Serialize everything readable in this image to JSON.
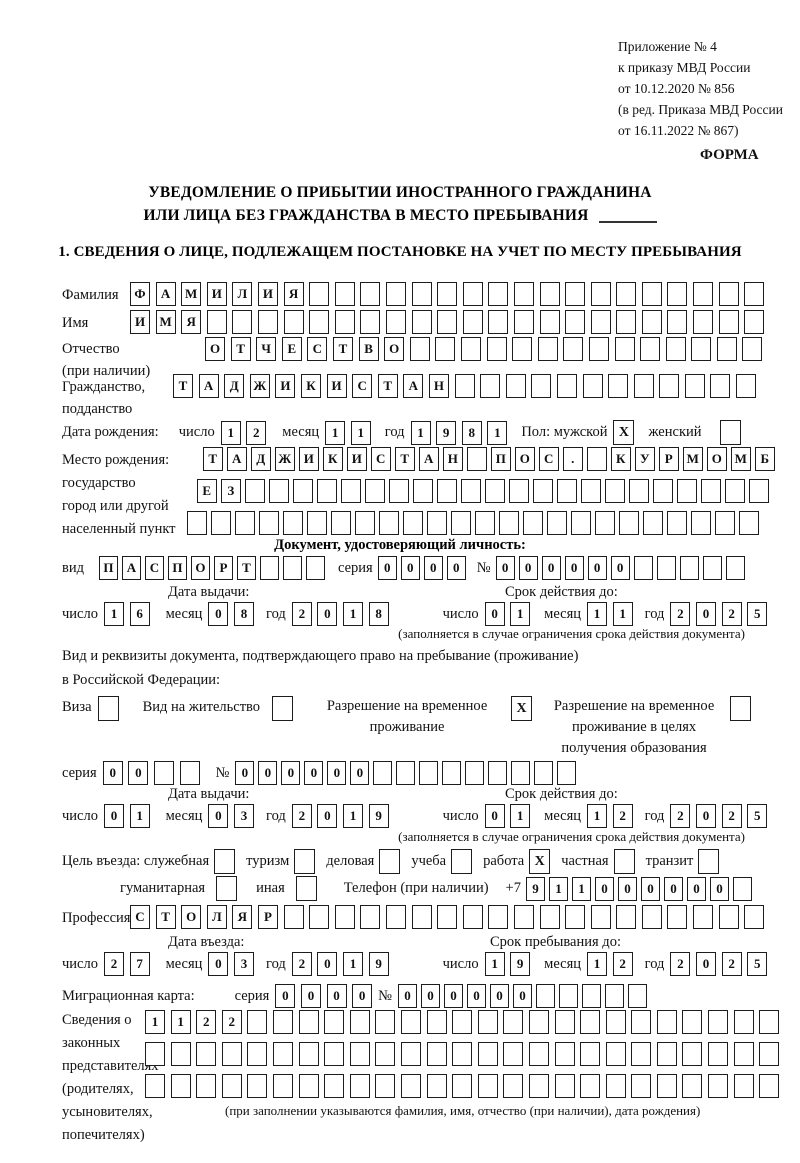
{
  "header": {
    "line1": "Приложение № 4",
    "line2": "к приказу МВД России",
    "line3": "от 10.12.2020 № 856",
    "line4": "(в ред. Приказа МВД России",
    "line5": "от 16.11.2022 № 867)",
    "form_label": "ФОРМА"
  },
  "title": {
    "line1": "УВЕДОМЛЕНИЕ О ПРИБЫТИИ ИНОСТРАННОГО ГРАЖДАНИНА",
    "line2": "ИЛИ ЛИЦА БЕЗ ГРАЖДАНСТВА В МЕСТО ПРЕБЫВАНИЯ"
  },
  "section1": {
    "heading": "1. СВЕДЕНИЯ О ЛИЦЕ, ПОДЛЕЖАЩЕМ ПОСТАНОВКЕ НА УЧЕТ ПО МЕСТУ ПРЕБЫВАНИЯ"
  },
  "labels": {
    "surname": "Фамилия",
    "given_name": "Имя",
    "patronymic": "Отчество",
    "patronymic_note": "(при наличии)",
    "citizenship1": "Гражданство,",
    "citizenship2": "подданство",
    "birth_date": "Дата рождения:",
    "day": "число",
    "month": "месяц",
    "year": "год",
    "sex_male": "Пол: мужской",
    "sex_female": "женский",
    "birth_place": "Место рождения:",
    "state": "государство",
    "city": "город или другой",
    "settlement": "населенный пункт",
    "identity_doc_heading": "Документ, удостоверяющий личность:",
    "doc_kind": "вид",
    "series": "серия",
    "number_sign": "№",
    "issue_date": "Дата выдачи:",
    "valid_until": "Срок действия до:",
    "valid_note": "(заполняется в случае ограничения срока действия документа)",
    "residence_doc_line1": "Вид и реквизиты документа, подтверждающего право на пребывание (проживание)",
    "residence_doc_line2": "в Российской Федерации:",
    "visa": "Виза",
    "residence_permit": "Вид на жительство",
    "temp_residence": "Разрешение на временное проживание",
    "temp_residence_edu": "Разрешение на временное проживание в целях получения образования",
    "entry_purpose": "Цель въезда: служебная",
    "tourism": "туризм",
    "business": "деловая",
    "study": "учеба",
    "work": "работа",
    "private": "частная",
    "transit": "транзит",
    "humanitarian": "гуманитарная",
    "other": "иная",
    "phone": "Телефон (при наличии)",
    "phone_prefix": "+7",
    "profession": "Профессия",
    "entry_date": "Дата въезда:",
    "stay_until": "Срок пребывания до:",
    "migration_card": "Миграционная карта:",
    "representatives1": "Сведения о",
    "representatives2": "законных",
    "representatives3": "представителях",
    "representatives4": "(родителях,",
    "representatives5": "усыновителях,",
    "representatives6": "попечителях)",
    "representatives_note": "(при заполнении указываются фамилия, имя, отчество (при наличии), дата рождения)"
  },
  "rows": {
    "surname": {
      "v": "ФАМИЛИЯ",
      "n": 25
    },
    "given_name": {
      "v": "ИМЯ",
      "n": 25
    },
    "patronymic": {
      "v": "ОТЧЕСТВО",
      "n": 22
    },
    "citizenship": {
      "v": "ТАДЖИКИСТАН",
      "n": 23
    },
    "birth_day": {
      "v": "12",
      "n": 2
    },
    "birth_month": {
      "v": "11",
      "n": 2
    },
    "birth_year": {
      "v": "1981",
      "n": 4
    },
    "birthplace_row1": {
      "v": "ТАДЖИКИСТАН ПОС. КУРМОМБ",
      "n": 24
    },
    "birthplace_row2": {
      "v": "ЕЗ",
      "n": 24
    },
    "birthplace_row3": {
      "v": "",
      "n": 24
    },
    "doc_kind": {
      "v": "ПАСПОРТ",
      "n": 10
    },
    "doc_series": {
      "v": "0000",
      "n": 4
    },
    "doc_number": {
      "v": "000000",
      "n": 11
    },
    "doc_issue_day": {
      "v": "16",
      "n": 2
    },
    "doc_issue_month": {
      "v": "08",
      "n": 2
    },
    "doc_issue_year": {
      "v": "2018",
      "n": 4
    },
    "doc_valid_day": {
      "v": "01",
      "n": 2
    },
    "doc_valid_month": {
      "v": "11",
      "n": 2
    },
    "doc_valid_year": {
      "v": "2025",
      "n": 4
    },
    "res_series": {
      "v": "00",
      "n": 4
    },
    "res_number": {
      "v": "000000",
      "n": 15
    },
    "res_issue_day": {
      "v": "01",
      "n": 2
    },
    "res_issue_month": {
      "v": "03",
      "n": 2
    },
    "res_issue_year": {
      "v": "2019",
      "n": 4
    },
    "res_valid_day": {
      "v": "01",
      "n": 2
    },
    "res_valid_month": {
      "v": "12",
      "n": 2
    },
    "res_valid_year": {
      "v": "2025",
      "n": 4
    },
    "phone": {
      "v": "911000000",
      "n": 10
    },
    "profession": {
      "v": "СТОЛЯР",
      "n": 25
    },
    "entry_day": {
      "v": "27",
      "n": 2
    },
    "entry_month": {
      "v": "03",
      "n": 2
    },
    "entry_year": {
      "v": "2019",
      "n": 4
    },
    "stay_day": {
      "v": "19",
      "n": 2
    },
    "stay_month": {
      "v": "12",
      "n": 2
    },
    "stay_year": {
      "v": "2025",
      "n": 4
    },
    "mig_series": {
      "v": "0000",
      "n": 4
    },
    "mig_number": {
      "v": "000000",
      "n": 11
    },
    "rep_row1": {
      "v": "1122",
      "n": 25
    },
    "rep_row2": {
      "v": "",
      "n": 25
    },
    "rep_row3": {
      "v": "",
      "n": 25
    }
  },
  "checkboxes": {
    "sex_male": "X",
    "sex_female": "",
    "visa": "",
    "residence_permit": "",
    "temp_residence": "X",
    "temp_residence_edu": "",
    "purpose_official": "",
    "purpose_tourism": "",
    "purpose_business": "",
    "purpose_study": "",
    "purpose_work": "X",
    "purpose_private": "",
    "purpose_transit": "",
    "purpose_humanitarian": "",
    "purpose_other": ""
  }
}
